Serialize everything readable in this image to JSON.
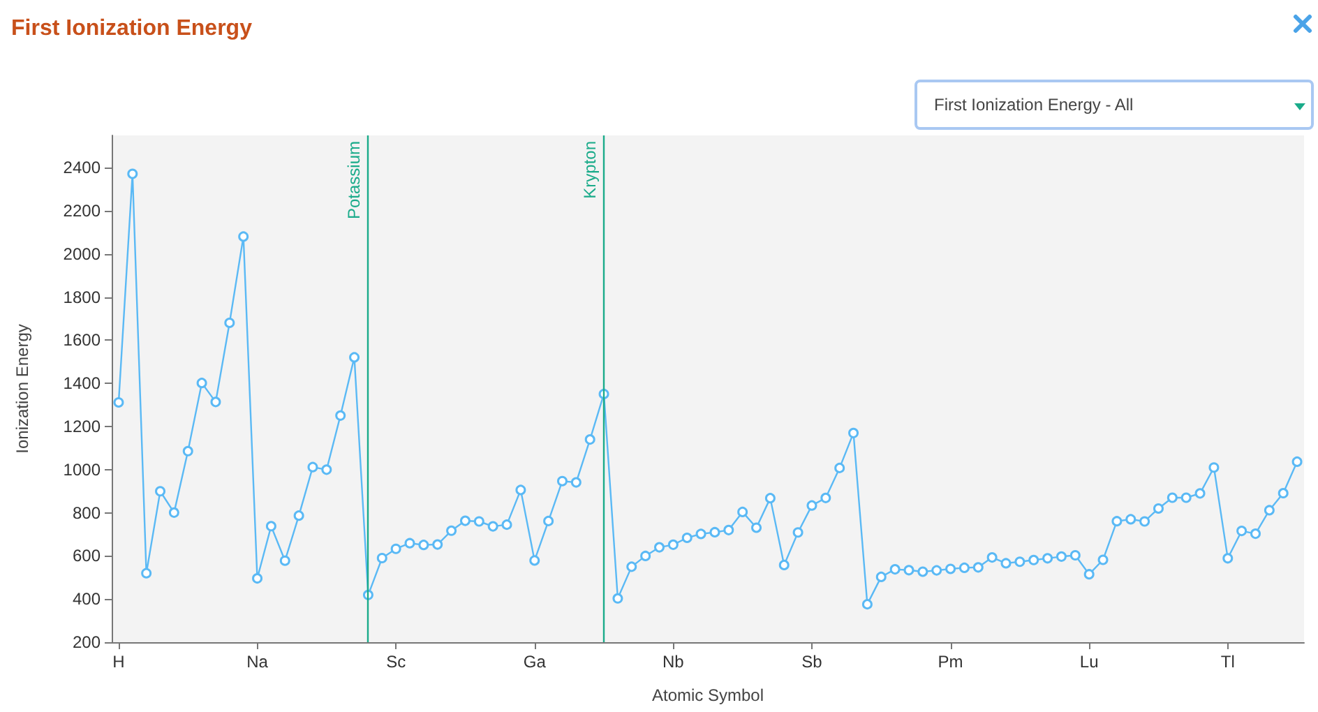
{
  "chart_data": {
    "type": "line",
    "title": "First Ionization Energy",
    "xlabel": "Atomic Symbol",
    "ylabel": "Ionization Energy",
    "annotations": [
      "First Ionization Energy - All"
    ],
    "categories": [
      "H",
      null,
      null,
      null,
      null,
      null,
      null,
      null,
      null,
      null,
      "Na",
      null,
      null,
      null,
      null,
      null,
      null,
      null,
      null,
      null,
      "Sc",
      null,
      null,
      null,
      null,
      null,
      null,
      null,
      null,
      null,
      "Ga",
      null,
      null,
      null,
      null,
      null,
      null,
      null,
      null,
      null,
      "Nb",
      null,
      null,
      null,
      null,
      null,
      null,
      null,
      null,
      null,
      "Sb",
      null,
      null,
      null,
      null,
      null,
      null,
      null,
      null,
      null,
      "Pm",
      null,
      null,
      null,
      null,
      null,
      null,
      null,
      null,
      null,
      "Lu",
      null,
      null,
      null,
      null,
      null,
      null,
      null,
      null,
      null,
      "Tl",
      null,
      null,
      null,
      null,
      null
    ],
    "series": [
      {
        "color": "#5ab9f5",
        "values": [
          1312,
          2372,
          520,
          900,
          801,
          1086,
          1402,
          1314,
          1681,
          2081,
          496,
          738,
          578,
          787,
          1012,
          1000,
          1251,
          1521,
          419,
          590,
          633,
          659,
          651,
          653,
          717,
          763,
          760,
          737,
          745,
          906,
          579,
          762,
          947,
          941,
          1140,
          1351,
          403,
          550,
          600,
          640,
          652,
          684,
          702,
          710,
          720,
          804,
          731,
          868,
          558,
          709,
          834,
          869,
          1008,
          1170,
          376,
          503,
          538,
          534,
          527,
          533,
          540,
          545,
          547,
          593,
          566,
          573,
          581,
          589,
          597,
          603,
          515,
          582,
          761,
          770,
          760,
          820,
          870,
          870,
          890,
          1010,
          589,
          716,
          703,
          812,
          891,
          1037
        ]
      }
    ],
    "ylim": [
      200,
      2550
    ],
    "yticks": [
      200,
      400,
      600,
      800,
      1000,
      1200,
      1400,
      1600,
      1800,
      2000,
      2200,
      2400
    ],
    "ref_lines": [
      {
        "axis": "x",
        "label": "Potassium",
        "color": "#1aab8a"
      },
      {
        "axis": "x",
        "label": "Krypton",
        "color": "#1aab8a"
      }
    ],
    "marker": "circle",
    "line_style": "solid"
  }
}
